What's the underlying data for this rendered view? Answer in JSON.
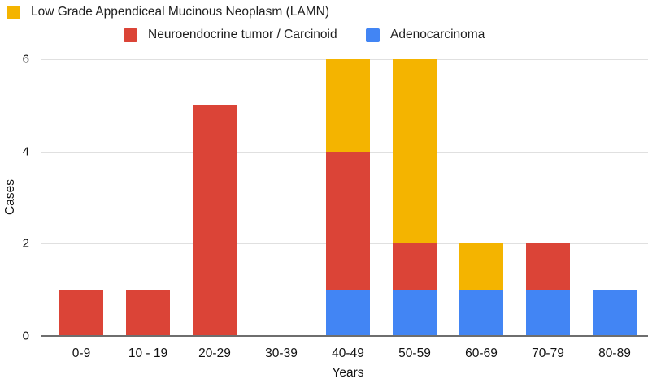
{
  "legend": {
    "items": [
      {
        "label": "Low Grade Appendiceal Mucinous Neoplasm (LAMN)",
        "color": "#F4B400",
        "icon": "yellow-square-swatch"
      },
      {
        "label": "Neuroendocrine tumor / Carcinoid",
        "color": "#DB4437",
        "icon": "red-square-swatch"
      },
      {
        "label": "Adenocarcinoma",
        "color": "#4285F4",
        "icon": "blue-square-swatch"
      }
    ]
  },
  "chart_data": {
    "type": "bar",
    "stacked": true,
    "title": "",
    "xlabel": "Years",
    "ylabel": "Cases",
    "ylim": [
      0,
      6
    ],
    "yticks": [
      0,
      2,
      4,
      6
    ],
    "grid": true,
    "legend_position": "top",
    "categories": [
      "0-9",
      "10 - 19",
      "20-29",
      "30-39",
      "40-49",
      "50-59",
      "60-69",
      "70-79",
      "80-89"
    ],
    "series": [
      {
        "name": "Low Grade Appendiceal Mucinous Neoplasm (LAMN)",
        "color": "#F4B400",
        "values": [
          0,
          0,
          0,
          0,
          2,
          4,
          1,
          0,
          0
        ]
      },
      {
        "name": "Neuroendocrine tumor / Carcinoid",
        "color": "#DB4437",
        "values": [
          1,
          1,
          5,
          0,
          3,
          1,
          0,
          1,
          0
        ]
      },
      {
        "name": "Adenocarcinoma",
        "color": "#4285F4",
        "values": [
          0,
          0,
          0,
          0,
          1,
          1,
          1,
          1,
          1
        ]
      }
    ],
    "stack_order_bottom_to_top": [
      "Adenocarcinoma",
      "Neuroendocrine tumor / Carcinoid",
      "Low Grade Appendiceal Mucinous Neoplasm (LAMN)"
    ],
    "totals": [
      1,
      1,
      5,
      0,
      6,
      6,
      2,
      2,
      1
    ]
  },
  "colors": {
    "gridline": "#e0e0e0",
    "axis_baseline": "#6e6e6e",
    "text": "#1a1a1a"
  }
}
